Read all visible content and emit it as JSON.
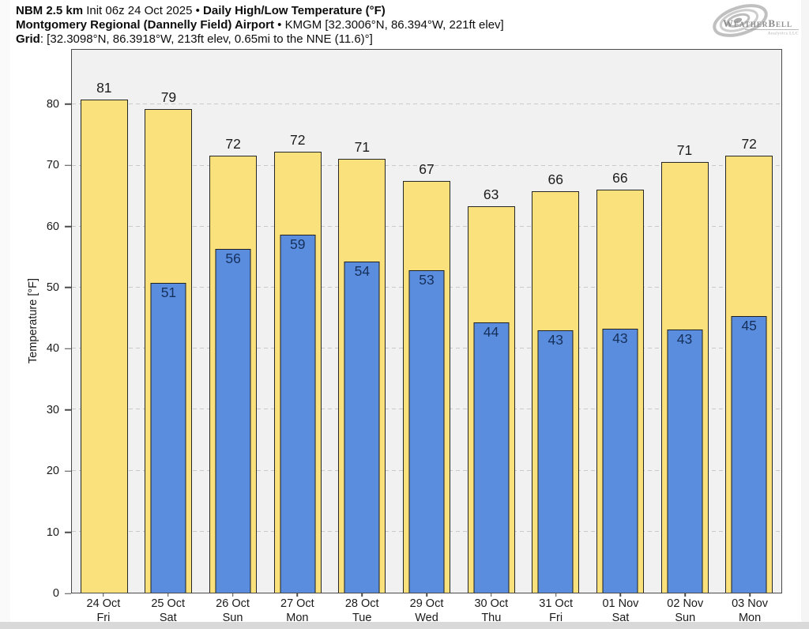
{
  "header": {
    "lines": [
      {
        "segments": [
          {
            "t": "NBM 2.5 km ",
            "b": 1
          },
          {
            "t": "Init 06z 24 Oct 2025 ",
            "b": 0
          },
          {
            "t": "• ",
            "b": 0
          },
          {
            "t": "Daily High/Low Temperature (°F)",
            "b": 1
          }
        ]
      },
      {
        "segments": [
          {
            "t": "Montgomery Regional (Dannelly Field) Airport",
            "b": 1
          },
          {
            "t": " • ",
            "b": 0
          },
          {
            "t": "KMGM [32.3006°N, 86.394°W, 221ft elev]",
            "b": 0
          }
        ]
      },
      {
        "segments": [
          {
            "t": "Grid",
            "b": 1
          },
          {
            "t": ": [32.3098°N, 86.3918°W, 213ft elev, 0.65mi to the NNE (11.6)°]",
            "b": 0
          }
        ]
      }
    ]
  },
  "logo": {
    "name_text": "WeatherBell",
    "sub_text": "Analytics LLC"
  },
  "chart_data": {
    "type": "bar",
    "title": "NBM 2.5 km Init 06z 24 Oct 2025 • Daily High/Low Temperature (°F)",
    "subtitle": "Montgomery Regional (Dannelly Field) Airport • KMGM [32.3006°N, 86.394°W, 221ft elev]",
    "grid_note": "Grid: [32.3098°N, 86.3918°W, 213ft elev, 0.65mi to the NNE (11.6)°]",
    "ylabel": "Temperature [°F]",
    "ylim": [
      0,
      89
    ],
    "yticks": [
      0,
      10,
      20,
      30,
      40,
      50,
      60,
      70,
      80
    ],
    "grid": "horizontal dashed lines every 10°F",
    "legend_position": "none",
    "colors": {
      "high_bar": "#fae17c",
      "low_bar": "#5b8dde",
      "bar_outline": "#262626",
      "plot_background": "#f1f1f1",
      "low_label_text": "#16305c"
    },
    "categories": [
      {
        "date": "24 Oct",
        "day": "Fri"
      },
      {
        "date": "25 Oct",
        "day": "Sat"
      },
      {
        "date": "26 Oct",
        "day": "Sun"
      },
      {
        "date": "27 Oct",
        "day": "Mon"
      },
      {
        "date": "28 Oct",
        "day": "Tue"
      },
      {
        "date": "29 Oct",
        "day": "Wed"
      },
      {
        "date": "30 Oct",
        "day": "Thu"
      },
      {
        "date": "31 Oct",
        "day": "Fri"
      },
      {
        "date": "01 Nov",
        "day": "Sat"
      },
      {
        "date": "02 Nov",
        "day": "Sun"
      },
      {
        "date": "03 Nov",
        "day": "Mon"
      }
    ],
    "series": [
      {
        "name": "High",
        "bar_color": "#fae17c",
        "labels": [
          81,
          79,
          72,
          72,
          71,
          67,
          63,
          66,
          66,
          71,
          72
        ],
        "values": [
          80.8,
          79.3,
          71.7,
          72.3,
          71.1,
          67.5,
          63.3,
          65.8,
          66.1,
          70.6,
          71.6
        ]
      },
      {
        "name": "Low",
        "bar_color": "#5b8dde",
        "labels": [
          null,
          51,
          56,
          59,
          54,
          53,
          44,
          43,
          43,
          43,
          45
        ],
        "values": [
          null,
          50.8,
          56.3,
          58.7,
          54.3,
          52.8,
          44.3,
          43.0,
          43.3,
          43.2,
          45.3
        ]
      }
    ]
  }
}
